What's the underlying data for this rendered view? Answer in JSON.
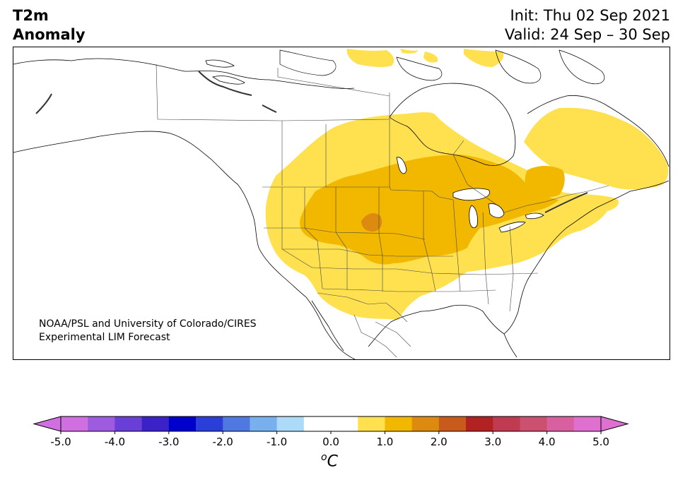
{
  "title": {
    "line1": "T2m",
    "line2": "Anomaly"
  },
  "info": {
    "init": "Init: Thu 02 Sep 2021",
    "valid": "Valid: 24 Sep – 30 Sep"
  },
  "credit": {
    "line1": "NOAA/PSL and University of Colorado/CIRES",
    "line2": "Experimental LIM Forecast"
  },
  "colorbar": {
    "unit_sup": "o",
    "unit_main": "C",
    "ticks": [
      "-5.0",
      "-4.0",
      "-3.0",
      "-2.0",
      "-1.0",
      "0.0",
      "1.0",
      "2.0",
      "3.0",
      "4.0",
      "5.0"
    ],
    "colors": [
      "#d070e0",
      "#9f5be0",
      "#6a3fd8",
      "#3a22c8",
      "#0000cc",
      "#2b3fd8",
      "#4f78e0",
      "#78b0ee",
      "#acdaf8",
      "#ffffff",
      "#ffffff",
      "#ffe150",
      "#f2b800",
      "#dc8a10",
      "#c85a1c",
      "#b22222",
      "#c03a50",
      "#cc5070",
      "#d860a0",
      "#e070d0"
    ],
    "under_color": "#d070e0",
    "over_color": "#e070d0"
  },
  "anomaly_colors": {
    "level1": "#ffe150",
    "level2": "#f2b800",
    "level3": "#dc8a10"
  }
}
